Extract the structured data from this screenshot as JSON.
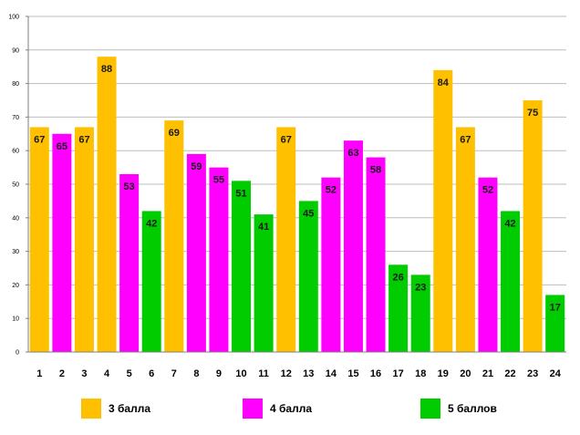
{
  "chart_data": {
    "type": "bar",
    "categories": [
      "1",
      "2",
      "3",
      "4",
      "5",
      "6",
      "7",
      "8",
      "9",
      "10",
      "11",
      "12",
      "13",
      "14",
      "15",
      "16",
      "17",
      "18",
      "19",
      "20",
      "21",
      "22",
      "23",
      "24"
    ],
    "values": [
      67,
      65,
      67,
      88,
      53,
      42,
      69,
      59,
      55,
      51,
      41,
      67,
      45,
      52,
      63,
      58,
      26,
      23,
      84,
      67,
      52,
      42,
      75,
      17
    ],
    "groups": [
      "3",
      "4",
      "3",
      "3",
      "4",
      "5",
      "3",
      "4",
      "4",
      "5",
      "5",
      "3",
      "5",
      "4",
      "4",
      "4",
      "5",
      "5",
      "3",
      "3",
      "4",
      "5",
      "3",
      "5"
    ],
    "ylim": [
      0,
      100
    ],
    "yticks": [
      0,
      10,
      20,
      30,
      40,
      50,
      60,
      70,
      80,
      90,
      100
    ],
    "grid": true,
    "title": "",
    "xlabel": "",
    "ylabel": "",
    "legend": [
      {
        "key": "3",
        "label": "3 балла",
        "color": "#FFC000"
      },
      {
        "key": "4",
        "label": "4 балла",
        "color": "#FF00FF"
      },
      {
        "key": "5",
        "label": "5 баллов",
        "color": "#00CC00"
      }
    ],
    "legend_position": "bottom"
  }
}
